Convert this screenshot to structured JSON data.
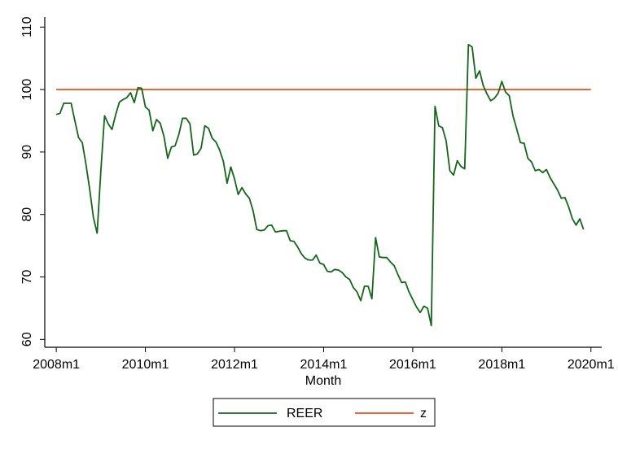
{
  "chart_data": {
    "type": "line",
    "xlabel": "Month",
    "x": [
      576,
      577,
      578,
      579,
      580,
      581,
      582,
      583,
      584,
      585,
      586,
      587,
      588,
      589,
      590,
      591,
      592,
      593,
      594,
      595,
      596,
      597,
      598,
      599,
      600,
      601,
      602,
      603,
      604,
      605,
      606,
      607,
      608,
      609,
      610,
      611,
      612,
      613,
      614,
      615,
      616,
      617,
      618,
      619,
      620,
      621,
      622,
      623,
      624,
      625,
      626,
      627,
      628,
      629,
      630,
      631,
      632,
      633,
      634,
      635,
      636,
      637,
      638,
      639,
      640,
      641,
      642,
      643,
      644,
      645,
      646,
      647,
      648,
      649,
      650,
      651,
      652,
      653,
      654,
      655,
      656,
      657,
      658,
      659,
      660,
      661,
      662,
      663,
      664,
      665,
      666,
      667,
      668,
      669,
      670,
      671,
      672,
      673,
      674,
      675,
      676,
      677,
      678,
      679,
      680,
      681,
      682,
      683,
      684,
      685,
      686,
      687,
      688,
      689,
      690,
      691,
      692,
      693,
      694,
      695,
      696,
      697,
      698,
      699,
      700,
      701,
      702,
      703,
      704,
      705,
      706,
      707,
      708,
      709,
      710,
      711,
      712,
      713,
      714,
      715,
      716,
      717,
      718,
      719,
      720
    ],
    "series": [
      {
        "name": "REER",
        "color": "#13661a",
        "values": [
          96,
          96.2,
          97.8,
          97.8,
          97.8,
          95,
          92.3,
          91.5,
          88,
          84,
          79.5,
          77,
          87,
          95.8,
          94.5,
          93.6,
          96,
          98,
          98.4,
          98.7,
          99.5,
          97.9,
          100.3,
          100.2,
          97.2,
          96.7,
          93.4,
          95.2,
          94.6,
          92.5,
          89,
          90.8,
          91,
          92.8,
          95.4,
          95.4,
          94.5,
          89.5,
          89.7,
          90.6,
          94.2,
          93.8,
          92.2,
          91.6,
          90.3,
          88.5,
          85,
          87.6,
          85.7,
          83.2,
          84.3,
          83.3,
          82.6,
          80.6,
          77.6,
          77.4,
          77.5,
          78.2,
          78.3,
          77.2,
          77.3,
          77.4,
          77.4,
          75.8,
          75.7,
          74.8,
          73.7,
          73,
          72.7,
          72.7,
          73.5,
          72.2,
          72,
          70.9,
          70.8,
          71.2,
          71.1,
          70.7,
          70,
          69.6,
          68.3,
          67.6,
          66.2,
          68.5,
          68.5,
          66.5,
          76.3,
          73.2,
          73.1,
          73.1,
          72.4,
          71.8,
          70.4,
          69.1,
          69.2,
          67.6,
          66.4,
          65.2,
          64.3,
          65.3,
          65,
          62.2,
          97.3,
          94.2,
          93.9,
          91.8,
          87,
          86.3,
          88.6,
          87.7,
          87.3,
          107.2,
          106.8,
          101.8,
          103,
          100.6,
          99.3,
          98.2,
          98.6,
          99.4,
          101.3,
          99.6,
          99,
          95.8,
          93.7,
          91.5,
          91.4,
          89,
          88.4,
          87,
          87.2,
          86.7,
          87.2,
          85.9,
          84.9,
          83.9,
          82.6,
          82.7,
          81.2,
          79.3,
          78.3,
          79.3,
          77.6,
          null,
          null
        ]
      },
      {
        "name": "z",
        "color": "#e8501c",
        "values": [
          100,
          100,
          100,
          100,
          100,
          100,
          100,
          100,
          100,
          100,
          100,
          100,
          100,
          100,
          100,
          100,
          100,
          100,
          100,
          100,
          100,
          100,
          100,
          100,
          100,
          100,
          100,
          100,
          100,
          100,
          100,
          100,
          100,
          100,
          100,
          100,
          100,
          100,
          100,
          100,
          100,
          100,
          100,
          100,
          100,
          100,
          100,
          100,
          100,
          100,
          100,
          100,
          100,
          100,
          100,
          100,
          100,
          100,
          100,
          100,
          100,
          100,
          100,
          100,
          100,
          100,
          100,
          100,
          100,
          100,
          100,
          100,
          100,
          100,
          100,
          100,
          100,
          100,
          100,
          100,
          100,
          100,
          100,
          100,
          100,
          100,
          100,
          100,
          100,
          100,
          100,
          100,
          100,
          100,
          100,
          100,
          100,
          100,
          100,
          100,
          100,
          100,
          100,
          100,
          100,
          100,
          100,
          100,
          100,
          100,
          100,
          100,
          100,
          100,
          100,
          100,
          100,
          100,
          100,
          100,
          100,
          100,
          100,
          100,
          100,
          100,
          100,
          100,
          100,
          100,
          100,
          100,
          100,
          100,
          100,
          100,
          100,
          100,
          100,
          100,
          100,
          100,
          100,
          100,
          100
        ]
      }
    ],
    "xlim": [
      572.9,
      722.9
    ],
    "xticks": [
      {
        "value": 576,
        "label": "2008m1"
      },
      {
        "value": 600,
        "label": "2010m1"
      },
      {
        "value": 624,
        "label": "2012m1"
      },
      {
        "value": 648,
        "label": "2014m1"
      },
      {
        "value": 672,
        "label": "2016m1"
      },
      {
        "value": 696,
        "label": "2018m1"
      },
      {
        "value": 720,
        "label": "2020m1"
      }
    ],
    "ylim": [
      59,
      111.6
    ],
    "yticks": [
      60,
      70,
      80,
      90,
      100,
      110
    ],
    "legend": "bottom"
  }
}
